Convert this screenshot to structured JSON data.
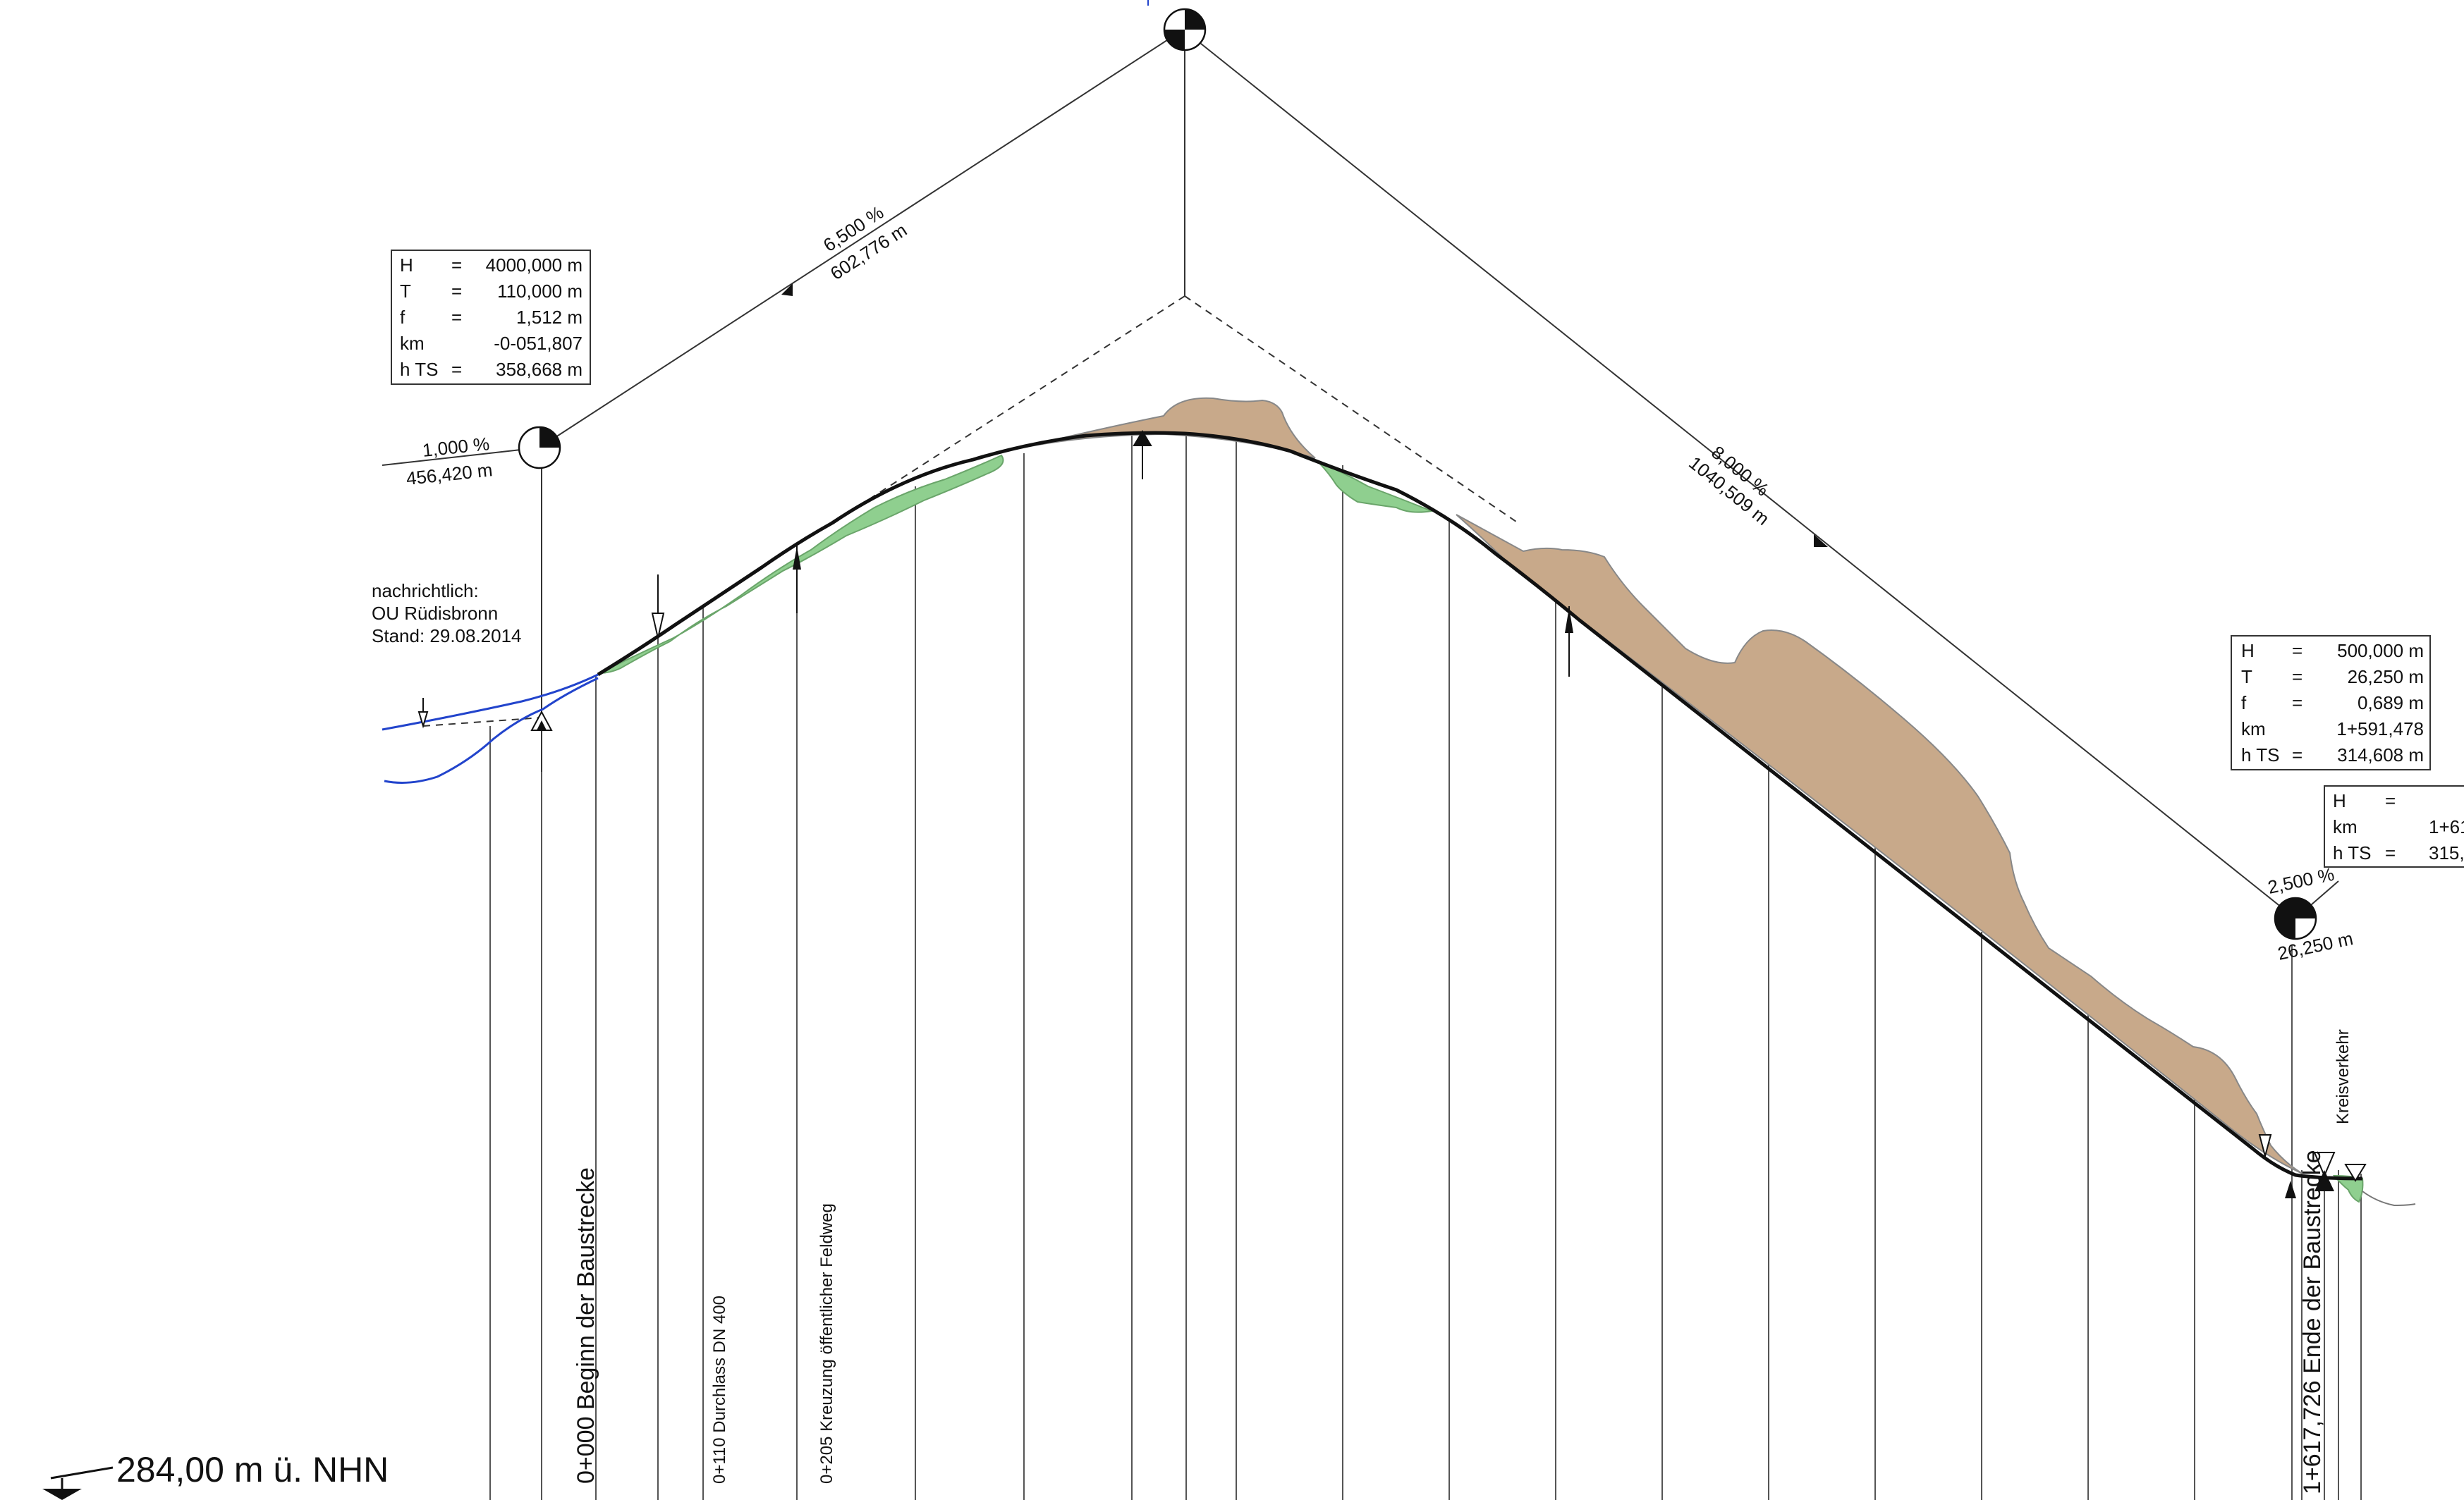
{
  "colors": {
    "cut": "#c8a98a",
    "fill": "#8fcf8f",
    "existing_road": "#2244cc",
    "line": "#111111"
  },
  "grades": {
    "left": {
      "percent": "1,000 %",
      "length": "456,420 m"
    },
    "up": {
      "percent": "6,500 %",
      "length": "602,776 m"
    },
    "down": {
      "percent": "8,000 %",
      "length": "1040,509 m"
    },
    "end": {
      "percent": "2,500 %",
      "length": "26,250 m"
    }
  },
  "curve_table_1": {
    "rows": [
      {
        "key": "H",
        "eq": "=",
        "val": "4000,000 m"
      },
      {
        "key": "T",
        "eq": "=",
        "val": "110,000 m"
      },
      {
        "key": "f",
        "eq": "=",
        "val": "1,512 m"
      },
      {
        "key": "km",
        "eq": "",
        "val": "-0-051,807"
      },
      {
        "key": "h TS",
        "eq": "=",
        "val": "358,668 m"
      }
    ]
  },
  "curve_table_2": {
    "rows": [
      {
        "key": "H",
        "eq": "=",
        "val": "500,000 m"
      },
      {
        "key": "T",
        "eq": "=",
        "val": "26,250 m"
      },
      {
        "key": "f",
        "eq": "=",
        "val": "0,689 m"
      },
      {
        "key": "km",
        "eq": "",
        "val": "1+591,478"
      },
      {
        "key": "h TS",
        "eq": "=",
        "val": "314,608 m"
      }
    ]
  },
  "curve_table_3": {
    "rows": [
      {
        "key": "H",
        "eq": "=",
        "val": ""
      },
      {
        "key": "km",
        "eq": "",
        "val": "1+61"
      },
      {
        "key": "h TS",
        "eq": "=",
        "val": "315,"
      }
    ]
  },
  "note": {
    "line1": "nachrichtlich:",
    "line2": "OU Rüdisbronn",
    "line3": "Stand: 29.08.2014"
  },
  "station_labels": {
    "start": "0+000 Beginn der Baustrecke",
    "culvert": "0+110 Durchlass DN 400",
    "crossing": "0+205 Kreuzung öffentlicher Feldweg",
    "end": "1+617,726 Ende der Baustrecke",
    "roundabout": "Kreisverkehr"
  },
  "datum": {
    "label": "284,00 m ü. NHN"
  },
  "icons": [
    "pvi-marker-icon",
    "datum-marker-icon",
    "profile-arrow-icon"
  ]
}
